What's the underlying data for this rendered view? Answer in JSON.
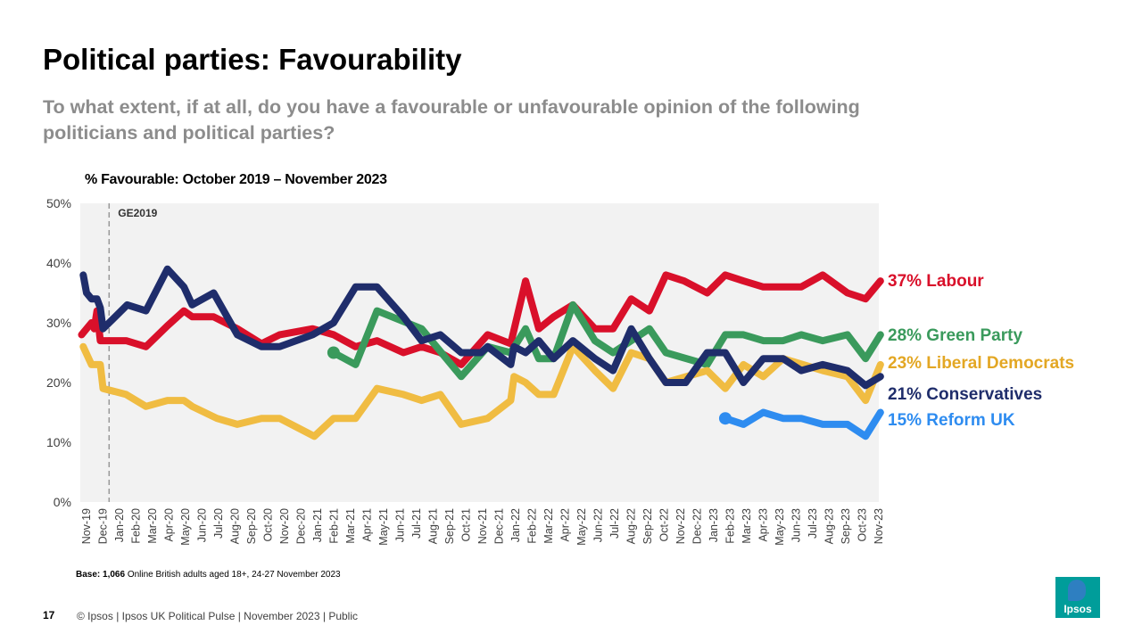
{
  "header": {
    "title": "Political parties: Favourability",
    "subtitle": "To what extent, if at all, do you have a favourable or unfavourable opinion of the following politicians and political parties?"
  },
  "chart_data": {
    "type": "line",
    "title": "% Favourable: October 2019 – November 2023",
    "xlabel": "",
    "ylabel": "",
    "ylim": [
      0,
      50
    ],
    "y_ticks": [
      "0%",
      "10%",
      "20%",
      "30%",
      "40%",
      "50%"
    ],
    "x_ticks": [
      "Nov-19",
      "Dec-19",
      "Jan-20",
      "Feb-20",
      "Mar-20",
      "Apr-20",
      "May-20",
      "Jun-20",
      "Jul-20",
      "Aug-20",
      "Sep-20",
      "Oct-20",
      "Nov-20",
      "Dec-20",
      "Jan-21",
      "Feb-21",
      "Mar-21",
      "Apr-21",
      "May-21",
      "Jun-21",
      "Jul-21",
      "Aug-21",
      "Sep-21",
      "Oct-21",
      "Nov-21",
      "Dec-21",
      "Jan-22",
      "Feb-22",
      "Mar-22",
      "Apr-22",
      "May-22",
      "Jun-22",
      "Jul-22",
      "Aug-22",
      "Sep-22",
      "Oct-22",
      "Nov-22",
      "Dec-22",
      "Jan-23",
      "Feb-23",
      "Mar-23",
      "Apr-23",
      "May-23",
      "Jun-23",
      "Jul-23",
      "Aug-23",
      "Sep-23",
      "Oct-23",
      "Nov-23"
    ],
    "grid": false,
    "background": "#f2f2f2",
    "annotation": {
      "label": "GE2019",
      "date": "2019-12-12",
      "style": "dashed vertical line"
    },
    "series": [
      {
        "name": "Labour",
        "end_label": "37% Labour",
        "color": "#d9102a",
        "points": [
          [
            "2019-10-22",
            28
          ],
          [
            "2019-11-10",
            30
          ],
          [
            "2019-11-15",
            29
          ],
          [
            "2019-11-20",
            32
          ],
          [
            "2019-11-26",
            27
          ],
          [
            "2020-01-13",
            27
          ],
          [
            "2020-02-19",
            26
          ],
          [
            "2020-03-28",
            29.5
          ],
          [
            "2020-04-28",
            32
          ],
          [
            "2020-05-13",
            31
          ],
          [
            "2020-06-22",
            31
          ],
          [
            "2020-08-05",
            29
          ],
          [
            "2020-09-19",
            26.5
          ],
          [
            "2020-10-22",
            28
          ],
          [
            "2020-12-22",
            29
          ],
          [
            "2021-01-30",
            28
          ],
          [
            "2021-03-10",
            26
          ],
          [
            "2021-04-19",
            27
          ],
          [
            "2021-06-07",
            25
          ],
          [
            "2021-07-10",
            26
          ],
          [
            "2021-08-14",
            25
          ],
          [
            "2021-09-22",
            23
          ],
          [
            "2021-11-10",
            28
          ],
          [
            "2021-12-22",
            26.5
          ],
          [
            "2022-01-19",
            37
          ],
          [
            "2022-02-13",
            29
          ],
          [
            "2022-03-10",
            31
          ],
          [
            "2022-04-15",
            33
          ],
          [
            "2022-05-25",
            29
          ],
          [
            "2022-06-28",
            29
          ],
          [
            "2022-08-01",
            34
          ],
          [
            "2022-09-04",
            32
          ],
          [
            "2022-10-04",
            38
          ],
          [
            "2022-11-07",
            37
          ],
          [
            "2022-12-19",
            35
          ],
          [
            "2023-01-22",
            38
          ],
          [
            "2023-02-25",
            37
          ],
          [
            "2023-04-01",
            36
          ],
          [
            "2023-06-10",
            36
          ],
          [
            "2023-07-19",
            38
          ],
          [
            "2023-09-04",
            35
          ],
          [
            "2023-10-07",
            34
          ],
          [
            "2023-11-04",
            37
          ]
        ]
      },
      {
        "name": "Green Party",
        "end_label": "28% Green Party",
        "color": "#3a9a5c",
        "start_marker": true,
        "points": [
          [
            "2021-01-30",
            25
          ],
          [
            "2021-03-10",
            23
          ],
          [
            "2021-04-19",
            32
          ],
          [
            "2021-07-10",
            29
          ],
          [
            "2021-09-22",
            21
          ],
          [
            "2021-11-10",
            26
          ],
          [
            "2021-12-22",
            25
          ],
          [
            "2022-01-19",
            29
          ],
          [
            "2022-02-13",
            24
          ],
          [
            "2022-03-10",
            24
          ],
          [
            "2022-04-15",
            33
          ],
          [
            "2022-05-25",
            27
          ],
          [
            "2022-06-28",
            25
          ],
          [
            "2022-09-04",
            29
          ],
          [
            "2022-10-04",
            25
          ],
          [
            "2022-12-19",
            23
          ],
          [
            "2023-01-22",
            28
          ],
          [
            "2023-02-25",
            28
          ],
          [
            "2023-04-01",
            27
          ],
          [
            "2023-05-07",
            27
          ],
          [
            "2023-06-10",
            28
          ],
          [
            "2023-07-19",
            27
          ],
          [
            "2023-09-04",
            28
          ],
          [
            "2023-10-07",
            24
          ],
          [
            "2023-11-04",
            28
          ]
        ]
      },
      {
        "name": "Liberal Democrats",
        "end_label": "23% Liberal Democrats",
        "color": "#f0bc42",
        "label_color": "#e3a724",
        "points": [
          [
            "2019-10-25",
            26
          ],
          [
            "2019-11-10",
            23
          ],
          [
            "2019-11-26",
            23
          ],
          [
            "2019-12-01",
            19
          ],
          [
            "2020-01-13",
            18
          ],
          [
            "2020-02-19",
            16
          ],
          [
            "2020-03-28",
            17
          ],
          [
            "2020-04-28",
            17
          ],
          [
            "2020-05-13",
            16
          ],
          [
            "2020-06-28",
            14
          ],
          [
            "2020-08-05",
            13
          ],
          [
            "2020-09-19",
            14
          ],
          [
            "2020-10-22",
            14
          ],
          [
            "2020-12-25",
            11
          ],
          [
            "2021-01-30",
            14
          ],
          [
            "2021-03-10",
            14
          ],
          [
            "2021-04-19",
            19
          ],
          [
            "2021-06-07",
            18
          ],
          [
            "2021-07-10",
            17
          ],
          [
            "2021-08-14",
            18
          ],
          [
            "2021-09-22",
            13
          ],
          [
            "2021-11-10",
            14
          ],
          [
            "2021-12-22",
            17
          ],
          [
            "2021-12-28",
            21
          ],
          [
            "2022-01-19",
            20
          ],
          [
            "2022-02-13",
            18
          ],
          [
            "2022-03-10",
            18
          ],
          [
            "2022-04-15",
            26
          ],
          [
            "2022-05-25",
            22
          ],
          [
            "2022-06-28",
            19
          ],
          [
            "2022-08-01",
            25
          ],
          [
            "2022-09-04",
            24
          ],
          [
            "2022-10-04",
            20
          ],
          [
            "2022-12-19",
            22
          ],
          [
            "2023-01-22",
            19
          ],
          [
            "2023-02-25",
            23
          ],
          [
            "2023-04-01",
            21
          ],
          [
            "2023-05-07",
            24
          ],
          [
            "2023-07-19",
            22
          ],
          [
            "2023-09-04",
            21
          ],
          [
            "2023-10-07",
            17
          ],
          [
            "2023-11-04",
            23
          ]
        ]
      },
      {
        "name": "Conservatives",
        "end_label": "21% Conservatives",
        "color": "#1f2d6b",
        "points": [
          [
            "2019-10-25",
            38
          ],
          [
            "2019-11-01",
            35
          ],
          [
            "2019-11-10",
            34
          ],
          [
            "2019-11-20",
            34
          ],
          [
            "2019-11-26",
            32.5
          ],
          [
            "2019-12-01",
            29
          ],
          [
            "2020-01-15",
            33
          ],
          [
            "2020-02-19",
            32
          ],
          [
            "2020-03-28",
            39
          ],
          [
            "2020-04-28",
            36
          ],
          [
            "2020-05-13",
            33
          ],
          [
            "2020-06-22",
            35
          ],
          [
            "2020-08-05",
            28
          ],
          [
            "2020-09-19",
            26
          ],
          [
            "2020-10-22",
            26
          ],
          [
            "2020-12-22",
            28
          ],
          [
            "2021-01-30",
            30
          ],
          [
            "2021-03-10",
            36
          ],
          [
            "2021-04-19",
            36
          ],
          [
            "2021-06-07",
            31
          ],
          [
            "2021-07-10",
            27
          ],
          [
            "2021-08-14",
            28
          ],
          [
            "2021-09-22",
            25
          ],
          [
            "2021-10-28",
            25
          ],
          [
            "2021-11-10",
            26
          ],
          [
            "2021-12-22",
            23
          ],
          [
            "2021-12-28",
            26
          ],
          [
            "2022-01-19",
            25
          ],
          [
            "2022-02-13",
            27
          ],
          [
            "2022-03-10",
            24
          ],
          [
            "2022-04-15",
            27
          ],
          [
            "2022-05-25",
            24
          ],
          [
            "2022-06-28",
            22
          ],
          [
            "2022-08-01",
            29
          ],
          [
            "2022-09-04",
            24
          ],
          [
            "2022-10-04",
            20
          ],
          [
            "2022-11-10",
            20
          ],
          [
            "2022-12-19",
            25
          ],
          [
            "2023-01-22",
            25
          ],
          [
            "2023-02-25",
            20
          ],
          [
            "2023-04-01",
            24
          ],
          [
            "2023-05-07",
            24
          ],
          [
            "2023-06-10",
            22
          ],
          [
            "2023-07-19",
            23
          ],
          [
            "2023-09-04",
            22
          ],
          [
            "2023-10-07",
            19.5
          ],
          [
            "2023-11-04",
            21
          ]
        ]
      },
      {
        "name": "Reform UK",
        "end_label": "15% Reform UK",
        "color": "#2e8cf0",
        "start_marker": true,
        "points": [
          [
            "2023-01-22",
            14
          ],
          [
            "2023-02-25",
            13
          ],
          [
            "2023-04-01",
            15
          ],
          [
            "2023-05-07",
            14
          ],
          [
            "2023-06-10",
            14
          ],
          [
            "2023-07-19",
            13
          ],
          [
            "2023-09-04",
            13
          ],
          [
            "2023-10-07",
            11
          ],
          [
            "2023-11-04",
            15
          ]
        ]
      }
    ]
  },
  "base_note": {
    "bold": "Base: 1,066",
    "text": " Online British adults aged 18+, 24-27 November 2023"
  },
  "footer": {
    "page_number": "17",
    "text": "© Ipsos |  Ipsos UK Political Pulse | November  2023 | Public"
  },
  "logo": {
    "text": "Ipsos"
  }
}
